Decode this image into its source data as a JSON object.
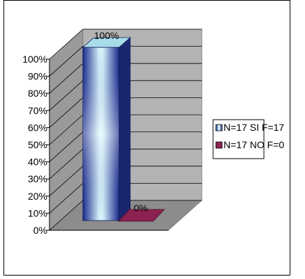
{
  "chart_data": {
    "type": "bar",
    "style": "3d",
    "categories": [
      ""
    ],
    "series": [
      {
        "name": "N=17 SI F=17",
        "values": [
          100
        ],
        "color": "#1f2f8f",
        "label": "100%"
      },
      {
        "name": "N=17 NO F=0",
        "values": [
          0
        ],
        "color": "#8b2252",
        "label": "0%"
      }
    ],
    "ylim": [
      0,
      100
    ],
    "yticks": [
      "0%",
      "10%",
      "20%",
      "30%",
      "40%",
      "50%",
      "60%",
      "70%",
      "80%",
      "90%",
      "100%"
    ],
    "grid": true,
    "legend": "right",
    "colors": {
      "back_wall": "#b3b3b3",
      "side_wall": "#9a9a9a",
      "floor": "#8c8c8c",
      "grid": "#000000"
    }
  }
}
